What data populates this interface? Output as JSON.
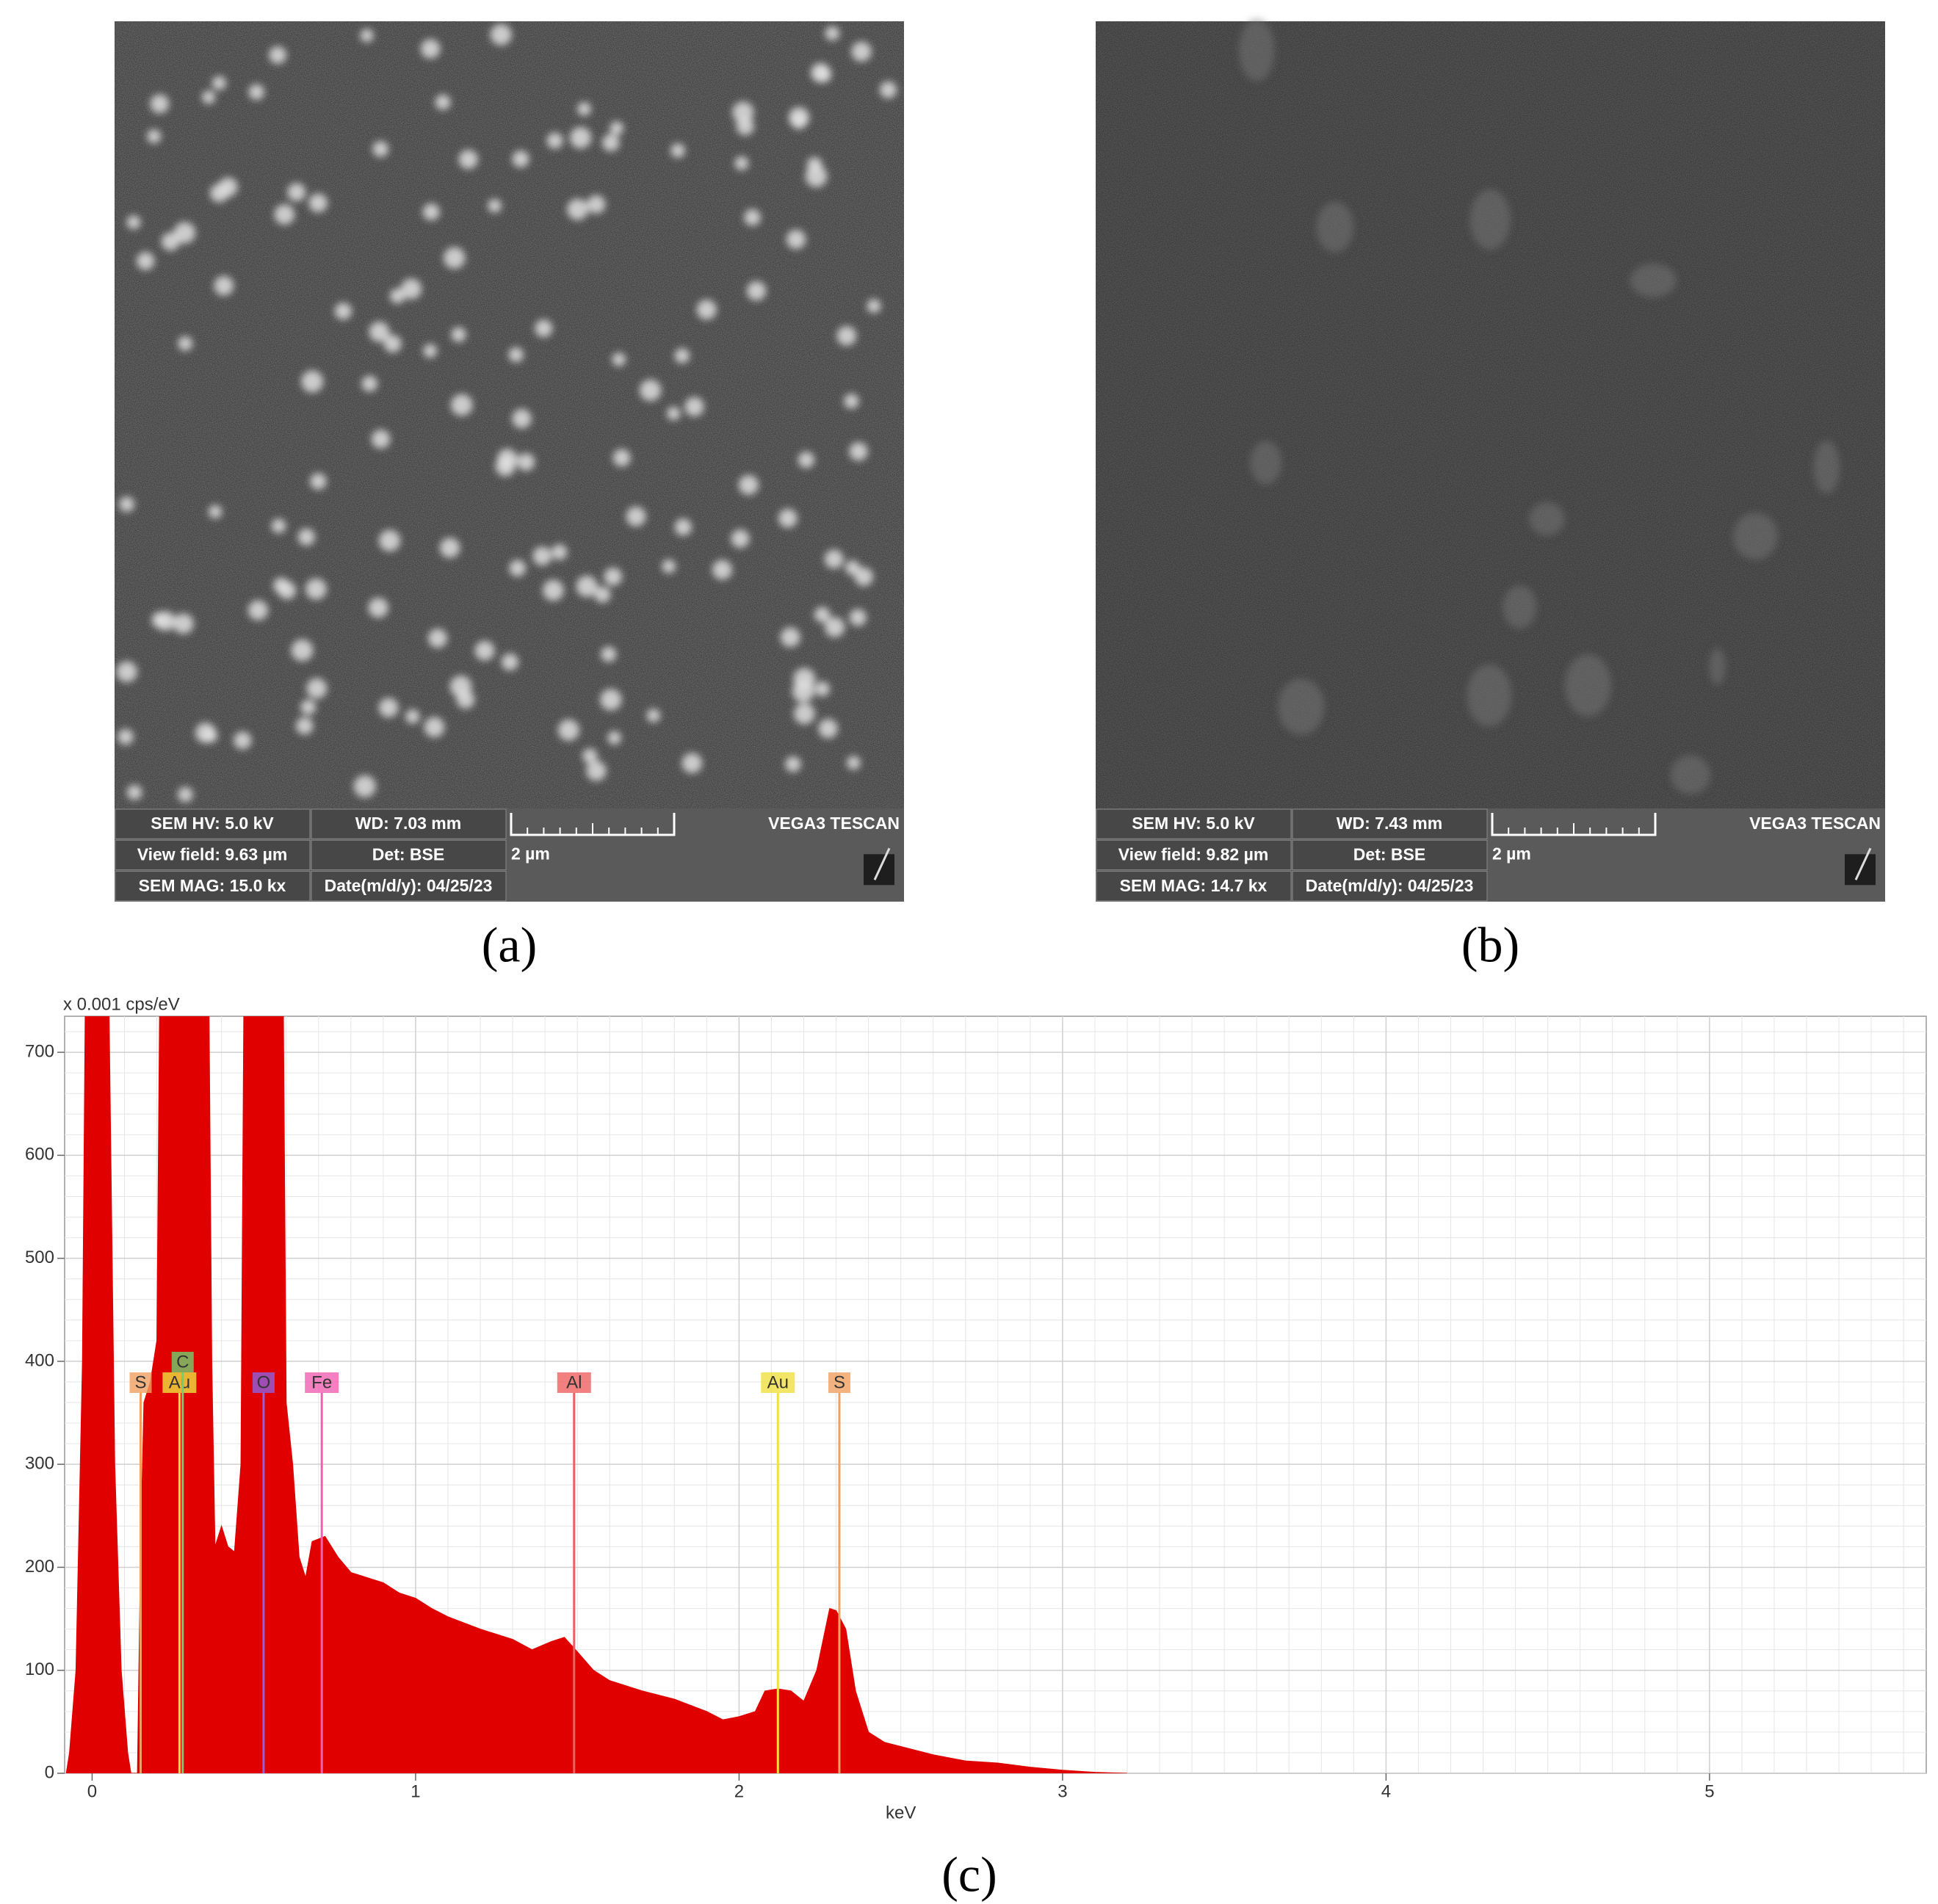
{
  "panels": [
    {
      "label": "(a)",
      "info": [
        [
          "SEM HV: 5.0 kV",
          "WD: 7.03 mm"
        ],
        [
          "View field: 9.63 µm",
          "Det: BSE"
        ],
        [
          "SEM MAG: 15.0 kx",
          "Date(m/d/y): 04/25/23"
        ]
      ],
      "scale": "2 µm",
      "brand": "VEGA3 TESCAN"
    },
    {
      "label": "(b)",
      "info": [
        [
          "SEM HV: 5.0 kV",
          "WD: 7.43 mm"
        ],
        [
          "View field: 9.82 µm",
          "Det: BSE"
        ],
        [
          "SEM MAG: 14.7 kx",
          "Date(m/d/y): 04/25/23"
        ]
      ],
      "scale": "2 µm",
      "brand": "VEGA3 TESCAN"
    }
  ],
  "chart_data": {
    "type": "area",
    "panel_label": "(c)",
    "y_unit_label": "x 0.001 cps/eV",
    "x_label": "keV",
    "color": "#e00000",
    "x": [
      -0.08,
      -0.07,
      -0.05,
      -0.03,
      -0.02,
      0.05,
      0.07,
      0.09,
      0.11,
      0.12,
      0.14,
      0.15,
      0.16,
      0.18,
      0.2,
      0.21,
      0.36,
      0.37,
      0.38,
      0.4,
      0.42,
      0.44,
      0.46,
      0.47,
      0.59,
      0.6,
      0.62,
      0.64,
      0.66,
      0.68,
      0.72,
      0.76,
      0.8,
      0.85,
      0.9,
      0.95,
      1.0,
      1.05,
      1.1,
      1.2,
      1.3,
      1.36,
      1.42,
      1.46,
      1.5,
      1.55,
      1.6,
      1.7,
      1.8,
      1.9,
      1.95,
      2.0,
      2.05,
      2.08,
      2.12,
      2.16,
      2.2,
      2.24,
      2.28,
      2.3,
      2.33,
      2.36,
      2.4,
      2.45,
      2.5,
      2.6,
      2.7,
      2.8,
      2.9,
      3.0,
      3.1,
      3.2
    ],
    "values": [
      0,
      20,
      100,
      400,
      800,
      800,
      300,
      100,
      20,
      0,
      0,
      220,
      360,
      380,
      420,
      800,
      800,
      400,
      220,
      240,
      220,
      215,
      300,
      800,
      800,
      360,
      300,
      210,
      190,
      225,
      230,
      210,
      195,
      190,
      185,
      175,
      170,
      160,
      152,
      140,
      130,
      120,
      128,
      132,
      118,
      100,
      90,
      80,
      72,
      60,
      52,
      55,
      60,
      80,
      82,
      80,
      70,
      100,
      160,
      158,
      140,
      80,
      40,
      30,
      26,
      18,
      12,
      10,
      6,
      3,
      1,
      0
    ],
    "xlim": [
      -0.085,
      5.67
    ],
    "ylim": [
      0,
      735
    ],
    "xticks": [
      0,
      1,
      2,
      3,
      4,
      5
    ],
    "yticks": [
      0,
      100,
      200,
      300,
      400,
      500,
      600,
      700
    ],
    "grid": true,
    "markers": [
      {
        "label": "S",
        "x": 0.15,
        "color": "#f0a060"
      },
      {
        "label": "Au",
        "x": 0.27,
        "color": "#f0e040"
      },
      {
        "label": "C",
        "x": 0.28,
        "color": "#70d070"
      },
      {
        "label": "O",
        "x": 0.53,
        "color": "#9060e0"
      },
      {
        "label": "Fe",
        "x": 0.71,
        "color": "#f060b0"
      },
      {
        "label": "Al",
        "x": 1.49,
        "color": "#f06060"
      },
      {
        "label": "Au",
        "x": 2.12,
        "color": "#f0e040"
      },
      {
        "label": "S",
        "x": 2.31,
        "color": "#f0a060"
      }
    ]
  }
}
